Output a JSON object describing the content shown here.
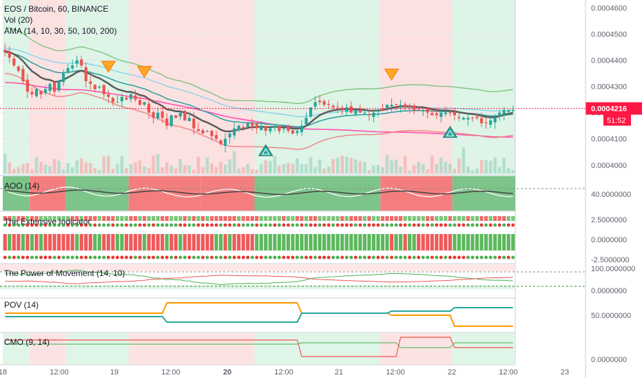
{
  "header": {
    "symbol_line": "EOS / Bitcoin, 60, BINANCE",
    "vol_label": "Vol (20)",
    "ama_label": "AMA (14, 10, 30, 50, 100, 200)"
  },
  "price_axis": {
    "ticks": [
      "0.0004600",
      "0.0004500",
      "0.0004400",
      "0.0004300",
      "0.0004200",
      "0.0004100",
      "0.0004000"
    ],
    "tick_values": [
      0.00046,
      0.00045,
      0.00044,
      0.00043,
      0.00042,
      0.00041,
      0.0004
    ],
    "last_price": "0.0004216",
    "countdown": "51:52",
    "last_color": "#ff1744"
  },
  "panes": {
    "aoo": {
      "label": "AOO (14)",
      "tick": "40.0000000"
    },
    "extensive": {
      "label": "The Extensive Indicator",
      "ticks": [
        "2.5000000",
        "0.0000000",
        "-2.5000000"
      ]
    },
    "pom": {
      "label": "The Power of Movement (14, 10)",
      "ticks": [
        "100.0000000",
        "0.0000000"
      ]
    },
    "pov": {
      "label": "POV (14)",
      "tick": "50.0000000"
    },
    "cmo": {
      "label": "CMO (9, 14)",
      "tick": "0.0000000"
    }
  },
  "time_axis": [
    "18",
    "12:00",
    "19",
    "12:00",
    "20",
    "12:00",
    "21",
    "12:00",
    "22",
    "12:00",
    "23"
  ],
  "colors": {
    "up": "#26a69a",
    "down": "#ef5350",
    "bg_green": "#d7f2e2",
    "bg_red": "#fbdcdc",
    "aoo_green": "#7dc48a",
    "aoo_red": "#f47e7e"
  },
  "chart_data": {
    "type": "candlestick",
    "y_range": [
      0.000396,
      0.000463
    ],
    "close": [
      0.000443,
      0.000441,
      0.000438,
      0.000436,
      0.000432,
      0.000428,
      0.000427,
      0.000429,
      0.000427,
      0.000429,
      0.000431,
      0.000428,
      0.000432,
      0.000435,
      0.000437,
      0.000438,
      0.00044,
      0.000438,
      0.000432,
      0.000431,
      0.000429,
      0.00043,
      0.000427,
      0.000426,
      0.000424,
      0.000424,
      0.000426,
      0.000425,
      0.000427,
      0.000425,
      0.000423,
      0.000424,
      0.00042,
      0.000418,
      0.00042,
      0.000418,
      0.000415,
      0.000419,
      0.000418,
      0.00042,
      0.000417,
      0.000418,
      0.000414,
      0.000413,
      0.000412,
      0.000413,
      0.000411,
      0.00041,
      0.000408,
      0.00041,
      0.000412,
      0.000414,
      0.000415,
      0.000414,
      0.000416,
      0.000415,
      0.000414,
      0.000415,
      0.000413,
      0.000414,
      0.000415,
      0.000413,
      0.000414,
      0.000413,
      0.000412,
      0.000413,
      0.000415,
      0.000418,
      0.000422,
      0.000424,
      0.000424,
      0.000423,
      0.000423,
      0.000422,
      0.000422,
      0.000421,
      0.000422,
      0.00042,
      0.000421,
      0.00042,
      0.00042,
      0.000419,
      0.00042,
      0.000421,
      0.000421,
      0.000423,
      0.000423,
      0.000423,
      0.000423,
      0.000422,
      0.000422,
      0.000421,
      0.000421,
      0.000421,
      0.00042,
      0.000419,
      0.000419,
      0.00042,
      0.00042,
      0.00042,
      0.000419,
      0.000418,
      0.000418,
      0.000418,
      0.000418,
      0.000418,
      0.000416,
      0.000416,
      0.000417,
      0.000418,
      0.00042,
      0.000421,
      0.000421,
      0.000421
    ],
    "signals": [
      {
        "type": "sell",
        "index": 23
      },
      {
        "type": "sell",
        "index": 31
      },
      {
        "type": "buy",
        "index": 58
      },
      {
        "type": "sell",
        "index": 86
      },
      {
        "type": "buy",
        "index": 99
      }
    ]
  }
}
